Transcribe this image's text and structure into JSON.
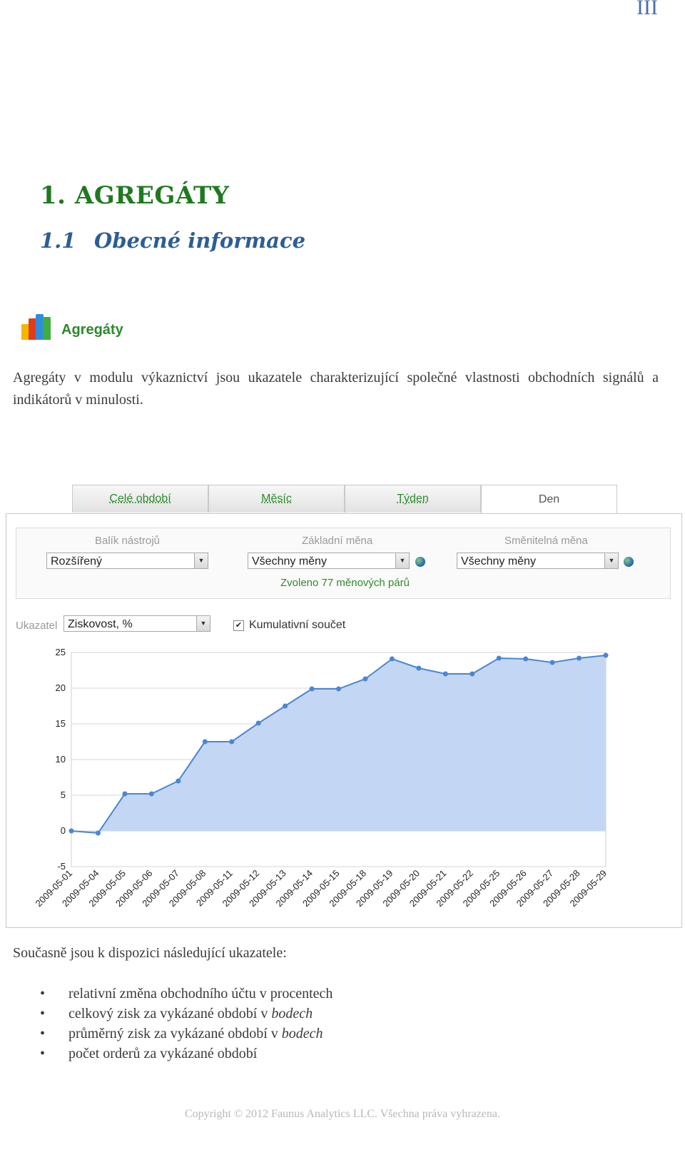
{
  "page_number": "III",
  "heading1": "1. AGREGÁTY",
  "heading2": {
    "number": "1.1",
    "title": "Obecné informace"
  },
  "logo": {
    "label": "Agregáty",
    "icon": "bar-chart-icon",
    "colors": [
      "#f7b500",
      "#e03c1a",
      "#2f8de0",
      "#3fae3f"
    ]
  },
  "intro": "Agregáty v modulu výkaznictví jsou ukazatele charakterizující společné vlastnosti obchodních signálů a indikátorů v minulosti.",
  "screenshot": {
    "tabs": [
      {
        "label": "Celé období",
        "active": false
      },
      {
        "label": "Měsíc",
        "active": false
      },
      {
        "label": "Týden",
        "active": false
      },
      {
        "label": "Den",
        "active": true
      }
    ],
    "filters": {
      "toolbox": {
        "label": "Balík nástrojů",
        "value": "Rozšířený"
      },
      "base_currency": {
        "label": "Základní měna",
        "value": "Všechny měny"
      },
      "quote_currency": {
        "label": "Směnitelná měna",
        "value": "Všechny měny"
      },
      "selected_text": "Zvoleno 77 měnových párů"
    },
    "indicator": {
      "label": "Ukazatel",
      "value": "Ziskovost, %"
    },
    "cumulative": {
      "label": "Kumulativní součet",
      "checked": true,
      "mark": "✔"
    }
  },
  "chart_data": {
    "type": "area",
    "title": "",
    "xlabel": "",
    "ylabel": "",
    "ylim": [
      -5,
      25
    ],
    "yticks": [
      "25",
      "20",
      "15",
      "10",
      "5",
      "0",
      "-5"
    ],
    "grid": true,
    "colors": {
      "line": "#4a86d6",
      "fill": "#c3d7f4"
    },
    "x": [
      "2009-05-01",
      "2009-05-04",
      "2009-05-05",
      "2009-05-06",
      "2009-05-07",
      "2009-05-08",
      "2009-05-11",
      "2009-05-12",
      "2009-05-13",
      "2009-05-14",
      "2009-05-15",
      "2009-05-18",
      "2009-05-19",
      "2009-05-20",
      "2009-05-21",
      "2009-05-22",
      "2009-05-25",
      "2009-05-26",
      "2009-05-27",
      "2009-05-28",
      "2009-05-29"
    ],
    "series": [
      {
        "values": [
          0,
          -0.3,
          5.2,
          5.2,
          7.0,
          12.5,
          12.5,
          15.1,
          17.5,
          19.9,
          19.9,
          21.3,
          24.1,
          22.8,
          22.0,
          22.0,
          24.2,
          24.1,
          23.6,
          24.2,
          24.6
        ]
      }
    ]
  },
  "intro2": "Současně jsou k dispozici následující ukazatele:",
  "bullets": [
    {
      "text": "relativní změna obchodního účtu v procentech",
      "em": ""
    },
    {
      "text": "celkový zisk za vykázané období v ",
      "em": "bodech"
    },
    {
      "text": "průměrný zisk za vykázané období v ",
      "em": "bodech"
    },
    {
      "text": "počet orderů za vykázané období",
      "em": ""
    }
  ],
  "footer": "Copyright © 2012 Faunus Analytics LLC. Všechna práva vyhrazena."
}
